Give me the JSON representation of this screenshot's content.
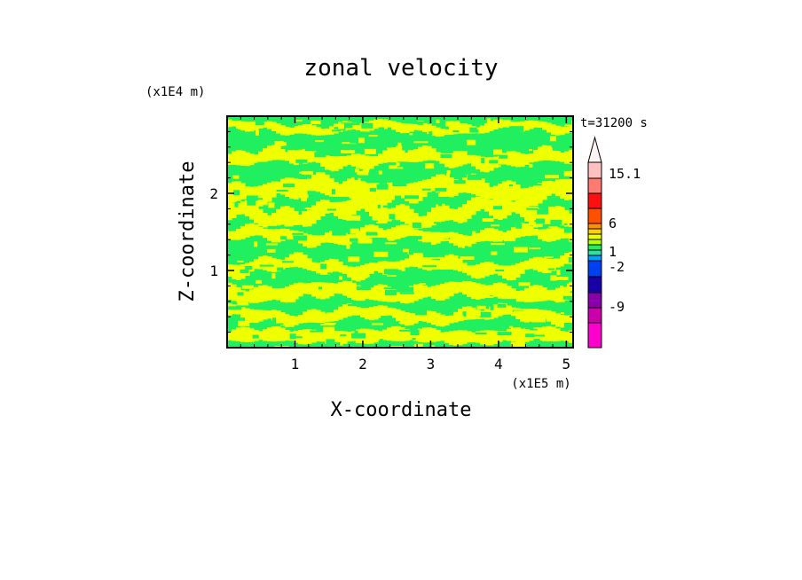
{
  "chart_data": {
    "type": "heatmap",
    "title": "zonal velocity",
    "xlabel": "X-coordinate",
    "ylabel": "Z-coordinate",
    "x_unit": "(x1E5 m)",
    "y_unit": "(x1E4 m)",
    "time_label": "t=31200 s",
    "x_range": [
      0,
      5.1
    ],
    "y_range": [
      0,
      3.0
    ],
    "x_ticks": [
      1,
      2,
      3,
      4,
      5
    ],
    "y_ticks": [
      1,
      2
    ],
    "x_tick_labels": [
      "1",
      "2",
      "3",
      "4",
      "5"
    ],
    "y_tick_labels": [
      "1",
      "2"
    ],
    "dominant_colors": {
      "positive_small": "#f0ff00",
      "near_zero": "#20f060"
    },
    "colorbar": {
      "labels": [
        "15.1",
        "6",
        "1",
        "-2",
        "-9"
      ],
      "bands": [
        {
          "color": "#ff00cc"
        },
        {
          "color": "#cc00aa"
        },
        {
          "color": "#8800aa"
        },
        {
          "color": "#1800a8"
        },
        {
          "color": "#0040f0"
        },
        {
          "color": "#00a0ff"
        },
        {
          "color": "#30e0a0"
        },
        {
          "color": "#20f060"
        },
        {
          "color": "#b0ff00"
        },
        {
          "color": "#f0ff00"
        },
        {
          "color": "#ffd000"
        },
        {
          "color": "#ff9000"
        },
        {
          "color": "#ff5000"
        },
        {
          "color": "#ff1010"
        },
        {
          "color": "#ff7a70"
        },
        {
          "color": "#ffc0c0"
        },
        {
          "color": "#fff4f4"
        }
      ]
    }
  }
}
